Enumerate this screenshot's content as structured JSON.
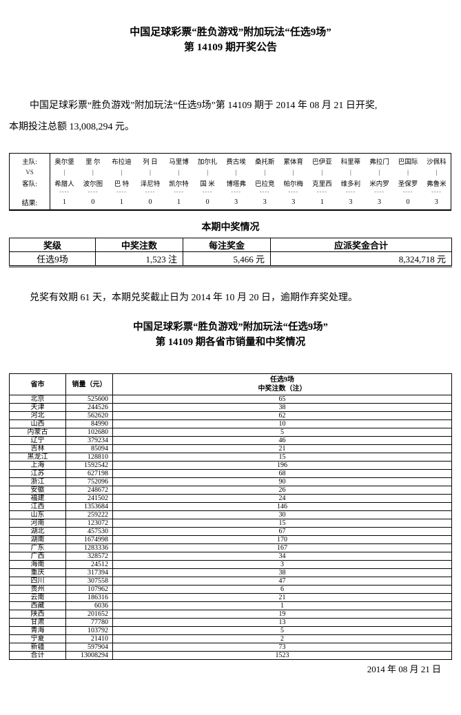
{
  "header": {
    "title_line1": "中国足球彩票“胜负游戏”附加玩法“任选9场”",
    "title_line2": "第 14109 期开奖公告",
    "intro_line1": "中国足球彩票“胜负游戏”附加玩法“任选9场”第 14109 期于 2014 年 08 月 21 日开奖,",
    "intro_line2": "本期投注总额 13,008,294 元。"
  },
  "match_table": {
    "row_labels": {
      "home": "主队:",
      "vs": "VS",
      "away": "客队:",
      "result": "结果:"
    },
    "vs_symbol": "|",
    "dash_symbol": "----",
    "matches": [
      {
        "home": "奥尔堡",
        "away": "希腊人",
        "result": "1"
      },
      {
        "home": "里 尔",
        "away": "波尔图",
        "result": "0"
      },
      {
        "home": "布拉迪",
        "away": "巴 特",
        "result": "1"
      },
      {
        "home": "列 日",
        "away": "泽尼特",
        "result": "0"
      },
      {
        "home": "马里博",
        "away": "凯尔特",
        "result": "1"
      },
      {
        "home": "加尔扎",
        "away": "国 米",
        "result": "0"
      },
      {
        "home": "费古埃",
        "away": "博塔弗",
        "result": "3"
      },
      {
        "home": "桑托斯",
        "away": "巴拉竞",
        "result": "3"
      },
      {
        "home": "累体育",
        "away": "帕尔梅",
        "result": "3"
      },
      {
        "home": "巴伊亚",
        "away": "克里西",
        "result": "1"
      },
      {
        "home": "科里蒂",
        "away": "维多利",
        "result": "3"
      },
      {
        "home": "弗拉门",
        "away": "米内罗",
        "result": "3"
      },
      {
        "home": "巴国际",
        "away": "圣保罗",
        "result": "0"
      },
      {
        "home": "沙佩科",
        "away": "弗鲁米",
        "result": "3"
      }
    ]
  },
  "prize_section": {
    "heading": "本期中奖情况",
    "headers": [
      "奖级",
      "中奖注数",
      "每注奖金",
      "应派奖金合计"
    ],
    "row": [
      "任选9场",
      "1,523 注",
      "5,466 元",
      "8,324,718 元"
    ]
  },
  "redeem_notice": "兑奖有效期 61 天，本期兑奖截止日为 2014 年 10 月 20 日，逾期作弃奖处理。",
  "province_section": {
    "title_line1": "中国足球彩票“胜负游戏”附加玩法“任选9场”",
    "title_line2": "第 14109 期各省市销量和中奖情况",
    "headers": {
      "province": "省市",
      "sales": "销量（元）",
      "wins_line1": "任选9场",
      "wins_line2": "中奖注数（注）"
    },
    "rows": [
      {
        "province": "北京",
        "sales": "525600",
        "wins": "65"
      },
      {
        "province": "天津",
        "sales": "244526",
        "wins": "38"
      },
      {
        "province": "河北",
        "sales": "562620",
        "wins": "62"
      },
      {
        "province": "山西",
        "sales": "84990",
        "wins": "10"
      },
      {
        "province": "内蒙古",
        "sales": "102680",
        "wins": "5"
      },
      {
        "province": "辽宁",
        "sales": "379234",
        "wins": "46"
      },
      {
        "province": "吉林",
        "sales": "85094",
        "wins": "21"
      },
      {
        "province": "黑龙江",
        "sales": "128810",
        "wins": "15"
      },
      {
        "province": "上海",
        "sales": "1592542",
        "wins": "196"
      },
      {
        "province": "江苏",
        "sales": "627198",
        "wins": "68"
      },
      {
        "province": "浙江",
        "sales": "752096",
        "wins": "90"
      },
      {
        "province": "安徽",
        "sales": "248672",
        "wins": "26"
      },
      {
        "province": "福建",
        "sales": "241502",
        "wins": "24"
      },
      {
        "province": "江西",
        "sales": "1353684",
        "wins": "146"
      },
      {
        "province": "山东",
        "sales": "259222",
        "wins": "30"
      },
      {
        "province": "河南",
        "sales": "123072",
        "wins": "15"
      },
      {
        "province": "湖北",
        "sales": "457530",
        "wins": "67"
      },
      {
        "province": "湖南",
        "sales": "1674998",
        "wins": "170"
      },
      {
        "province": "广东",
        "sales": "1283336",
        "wins": "167"
      },
      {
        "province": "广西",
        "sales": "328572",
        "wins": "34"
      },
      {
        "province": "海南",
        "sales": "24512",
        "wins": "3"
      },
      {
        "province": "重庆",
        "sales": "317394",
        "wins": "38"
      },
      {
        "province": "四川",
        "sales": "307558",
        "wins": "47"
      },
      {
        "province": "贵州",
        "sales": "107962",
        "wins": "6"
      },
      {
        "province": "云南",
        "sales": "186316",
        "wins": "21"
      },
      {
        "province": "西藏",
        "sales": "6036",
        "wins": "1"
      },
      {
        "province": "陕西",
        "sales": "201652",
        "wins": "19"
      },
      {
        "province": "甘肃",
        "sales": "77780",
        "wins": "13"
      },
      {
        "province": "青海",
        "sales": "103792",
        "wins": "5"
      },
      {
        "province": "宁夏",
        "sales": "21410",
        "wins": "2"
      },
      {
        "province": "新疆",
        "sales": "597904",
        "wins": "73"
      },
      {
        "province": "合计",
        "sales": "13008294",
        "wins": "1523"
      }
    ]
  },
  "footer_date": "2014 年 08 月 21 日"
}
